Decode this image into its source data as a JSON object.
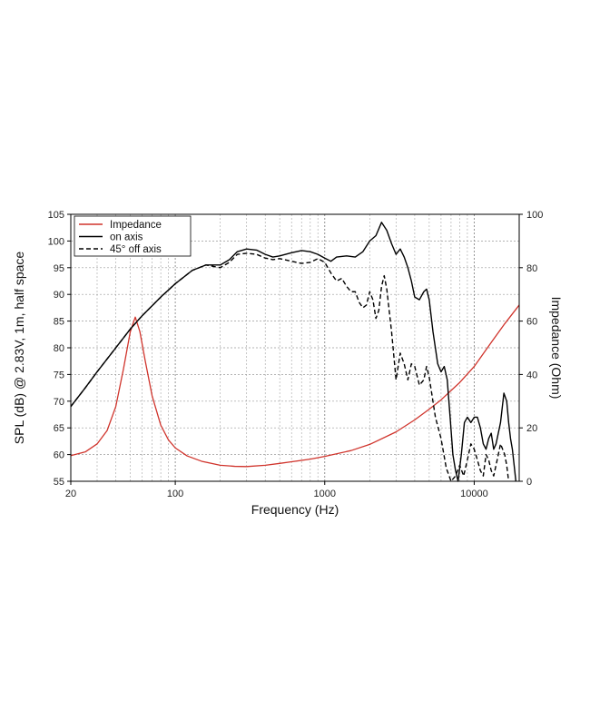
{
  "chart_data": {
    "type": "line",
    "title": "",
    "xlabel": "Frequency (Hz)",
    "ylabel": "SPL (dB) @ 2.83V, 1m, half space",
    "y2label": "Impedance (Ohm)",
    "xscale": "log",
    "xlim": [
      20,
      20000
    ],
    "ylim": [
      55,
      105
    ],
    "y2lim": [
      0,
      100
    ],
    "grid": true,
    "legend_position": "top-left",
    "x_ticks": [
      {
        "value": 20,
        "label": "20"
      },
      {
        "value": 100,
        "label": "100"
      },
      {
        "value": 1000,
        "label": "1000"
      },
      {
        "value": 10000,
        "label": "10000"
      }
    ],
    "y_ticks": [
      {
        "value": 105,
        "label": "105"
      },
      {
        "value": 100,
        "label": "100"
      },
      {
        "value": 95,
        "label": "95"
      },
      {
        "value": 90,
        "label": "90"
      },
      {
        "value": 85,
        "label": "85"
      },
      {
        "value": 80,
        "label": "80"
      },
      {
        "value": 75,
        "label": "75"
      },
      {
        "value": 70,
        "label": "70"
      },
      {
        "value": 65,
        "label": "65"
      },
      {
        "value": 60,
        "label": "60"
      },
      {
        "value": 55,
        "label": "55"
      }
    ],
    "y2_ticks": [
      {
        "value": 100,
        "label": "100"
      },
      {
        "value": 80,
        "label": "80"
      },
      {
        "value": 60,
        "label": "60"
      },
      {
        "value": 40,
        "label": "40"
      },
      {
        "value": 20,
        "label": "20"
      },
      {
        "value": 0,
        "label": "0"
      }
    ],
    "series": [
      {
        "name": "Impedance",
        "axis": "right",
        "color": "#d0342c",
        "dash": "solid",
        "points": [
          [
            20,
            9.6
          ],
          [
            25,
            11
          ],
          [
            30,
            14
          ],
          [
            35,
            19
          ],
          [
            40,
            28
          ],
          [
            45,
            42
          ],
          [
            50,
            56
          ],
          [
            54,
            61.5
          ],
          [
            58,
            56
          ],
          [
            63,
            45
          ],
          [
            70,
            32
          ],
          [
            80,
            21
          ],
          [
            90,
            15.5
          ],
          [
            100,
            12.5
          ],
          [
            120,
            9.5
          ],
          [
            150,
            7.5
          ],
          [
            200,
            6
          ],
          [
            250,
            5.6
          ],
          [
            300,
            5.5
          ],
          [
            400,
            6
          ],
          [
            500,
            6.7
          ],
          [
            600,
            7.3
          ],
          [
            800,
            8.3
          ],
          [
            1000,
            9.3
          ],
          [
            1500,
            11.5
          ],
          [
            2000,
            13.8
          ],
          [
            3000,
            18.5
          ],
          [
            4000,
            23
          ],
          [
            5000,
            27
          ],
          [
            6000,
            30.5
          ],
          [
            8000,
            37
          ],
          [
            10000,
            43
          ],
          [
            13000,
            52
          ],
          [
            16000,
            59
          ],
          [
            20000,
            66
          ]
        ]
      },
      {
        "name": "on axis",
        "axis": "left",
        "color": "#000000",
        "dash": "solid",
        "points": [
          [
            20,
            69
          ],
          [
            25,
            72.5
          ],
          [
            30,
            75.5
          ],
          [
            40,
            80
          ],
          [
            50,
            83.5
          ],
          [
            60,
            86
          ],
          [
            80,
            89.5
          ],
          [
            100,
            92
          ],
          [
            130,
            94.5
          ],
          [
            160,
            95.5
          ],
          [
            200,
            95.5
          ],
          [
            230,
            96.5
          ],
          [
            260,
            98
          ],
          [
            300,
            98.5
          ],
          [
            350,
            98.3
          ],
          [
            400,
            97.5
          ],
          [
            450,
            97
          ],
          [
            500,
            97.2
          ],
          [
            600,
            97.8
          ],
          [
            700,
            98.2
          ],
          [
            800,
            98
          ],
          [
            900,
            97.5
          ],
          [
            1000,
            96.8
          ],
          [
            1100,
            96.2
          ],
          [
            1200,
            97
          ],
          [
            1400,
            97.2
          ],
          [
            1600,
            97
          ],
          [
            1800,
            98
          ],
          [
            2000,
            100
          ],
          [
            2200,
            101
          ],
          [
            2400,
            103.5
          ],
          [
            2600,
            102
          ],
          [
            2800,
            99.5
          ],
          [
            3000,
            97.5
          ],
          [
            3200,
            98.5
          ],
          [
            3400,
            97
          ],
          [
            3600,
            95
          ],
          [
            3800,
            92.5
          ],
          [
            4000,
            89.5
          ],
          [
            4300,
            89
          ],
          [
            4600,
            90.5
          ],
          [
            4800,
            91
          ],
          [
            5000,
            89
          ],
          [
            5300,
            83
          ],
          [
            5700,
            77
          ],
          [
            6000,
            75.5
          ],
          [
            6300,
            76.5
          ],
          [
            6600,
            74
          ],
          [
            6900,
            67
          ],
          [
            7200,
            60
          ],
          [
            7500,
            57
          ],
          [
            7800,
            55
          ],
          [
            8200,
            60
          ],
          [
            8600,
            66
          ],
          [
            9000,
            67
          ],
          [
            9500,
            66
          ],
          [
            10000,
            67
          ],
          [
            10500,
            67
          ],
          [
            11000,
            65
          ],
          [
            11500,
            62
          ],
          [
            12000,
            61
          ],
          [
            12500,
            63
          ],
          [
            13000,
            64
          ],
          [
            13500,
            61
          ],
          [
            14000,
            62
          ],
          [
            15000,
            66
          ],
          [
            15800,
            71.5
          ],
          [
            16500,
            70
          ],
          [
            17000,
            66
          ],
          [
            17500,
            63
          ],
          [
            18000,
            61
          ],
          [
            18500,
            58
          ],
          [
            19000,
            55
          ]
        ]
      },
      {
        "name": "45° off axis",
        "axis": "left",
        "color": "#000000",
        "dash": "dashed",
        "points": [
          [
            20,
            69
          ],
          [
            25,
            72.5
          ],
          [
            30,
            75.5
          ],
          [
            40,
            80
          ],
          [
            50,
            83.5
          ],
          [
            60,
            86
          ],
          [
            80,
            89.5
          ],
          [
            100,
            92
          ],
          [
            130,
            94.5
          ],
          [
            160,
            95.5
          ],
          [
            200,
            95
          ],
          [
            230,
            96
          ],
          [
            260,
            97.5
          ],
          [
            300,
            97.7
          ],
          [
            350,
            97.5
          ],
          [
            400,
            96.8
          ],
          [
            450,
            96.5
          ],
          [
            500,
            96.7
          ],
          [
            600,
            96.2
          ],
          [
            700,
            95.8
          ],
          [
            800,
            96
          ],
          [
            900,
            96.7
          ],
          [
            1000,
            96
          ],
          [
            1100,
            94
          ],
          [
            1200,
            92.5
          ],
          [
            1300,
            93
          ],
          [
            1400,
            91.5
          ],
          [
            1500,
            90.5
          ],
          [
            1600,
            90.5
          ],
          [
            1700,
            88.5
          ],
          [
            1800,
            87.5
          ],
          [
            1900,
            88
          ],
          [
            2000,
            90.5
          ],
          [
            2100,
            89
          ],
          [
            2200,
            85.5
          ],
          [
            2300,
            87
          ],
          [
            2400,
            91.5
          ],
          [
            2500,
            93.5
          ],
          [
            2600,
            91
          ],
          [
            2800,
            83
          ],
          [
            3000,
            74
          ],
          [
            3200,
            79
          ],
          [
            3400,
            77
          ],
          [
            3600,
            74
          ],
          [
            3800,
            77
          ],
          [
            4000,
            76.5
          ],
          [
            4300,
            73
          ],
          [
            4600,
            74
          ],
          [
            4800,
            76.5
          ],
          [
            5000,
            74.5
          ],
          [
            5500,
            67
          ],
          [
            6000,
            63
          ],
          [
            6500,
            57.5
          ],
          [
            7000,
            55
          ],
          [
            7500,
            56
          ],
          [
            8000,
            58
          ],
          [
            8500,
            56
          ],
          [
            9000,
            59
          ],
          [
            9500,
            62
          ],
          [
            10000,
            61
          ],
          [
            10500,
            59
          ],
          [
            11000,
            57
          ],
          [
            11500,
            56
          ],
          [
            12000,
            60
          ],
          [
            12500,
            59
          ],
          [
            13000,
            57
          ],
          [
            13500,
            56
          ],
          [
            14000,
            58
          ],
          [
            15000,
            62
          ],
          [
            16000,
            60
          ],
          [
            16500,
            58
          ],
          [
            17000,
            55
          ]
        ]
      }
    ]
  }
}
